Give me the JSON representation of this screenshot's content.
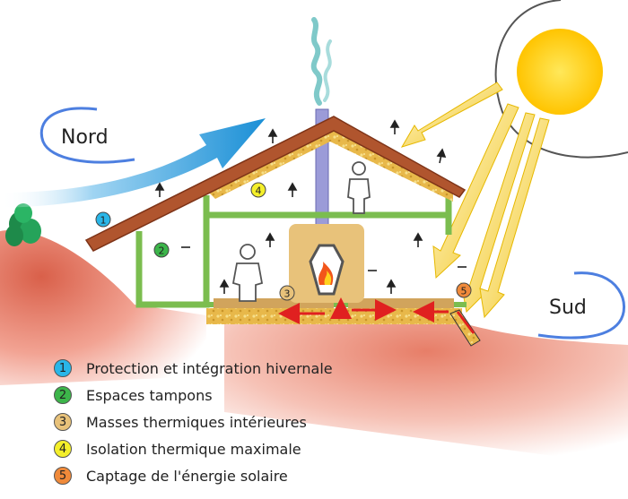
{
  "labels": {
    "north": "Nord",
    "south": "Sud"
  },
  "markers": [
    "1",
    "2",
    "3",
    "4",
    "5"
  ],
  "colors": {
    "marker_1": "#29b6e8",
    "marker_2": "#3cb54a",
    "marker_3": "#e8c27a",
    "marker_4": "#f4ef2a",
    "marker_5": "#f08a3a",
    "roof": "#b0552e",
    "walls": "#7bbd4f",
    "insulation": "#e8b84a",
    "sun": "#ffd21e",
    "wind": "#2a9fd8",
    "ground": "#e9836b"
  },
  "legend": [
    {
      "number": "1",
      "text": "Protection et intégration hivernale"
    },
    {
      "number": "2",
      "text": "Espaces tampons"
    },
    {
      "number": "3",
      "text": "Masses thermiques intérieures"
    },
    {
      "number": "4",
      "text": "Isolation thermique maximale"
    },
    {
      "number": "5",
      "text": "Captage de l'énergie solaire"
    }
  ]
}
